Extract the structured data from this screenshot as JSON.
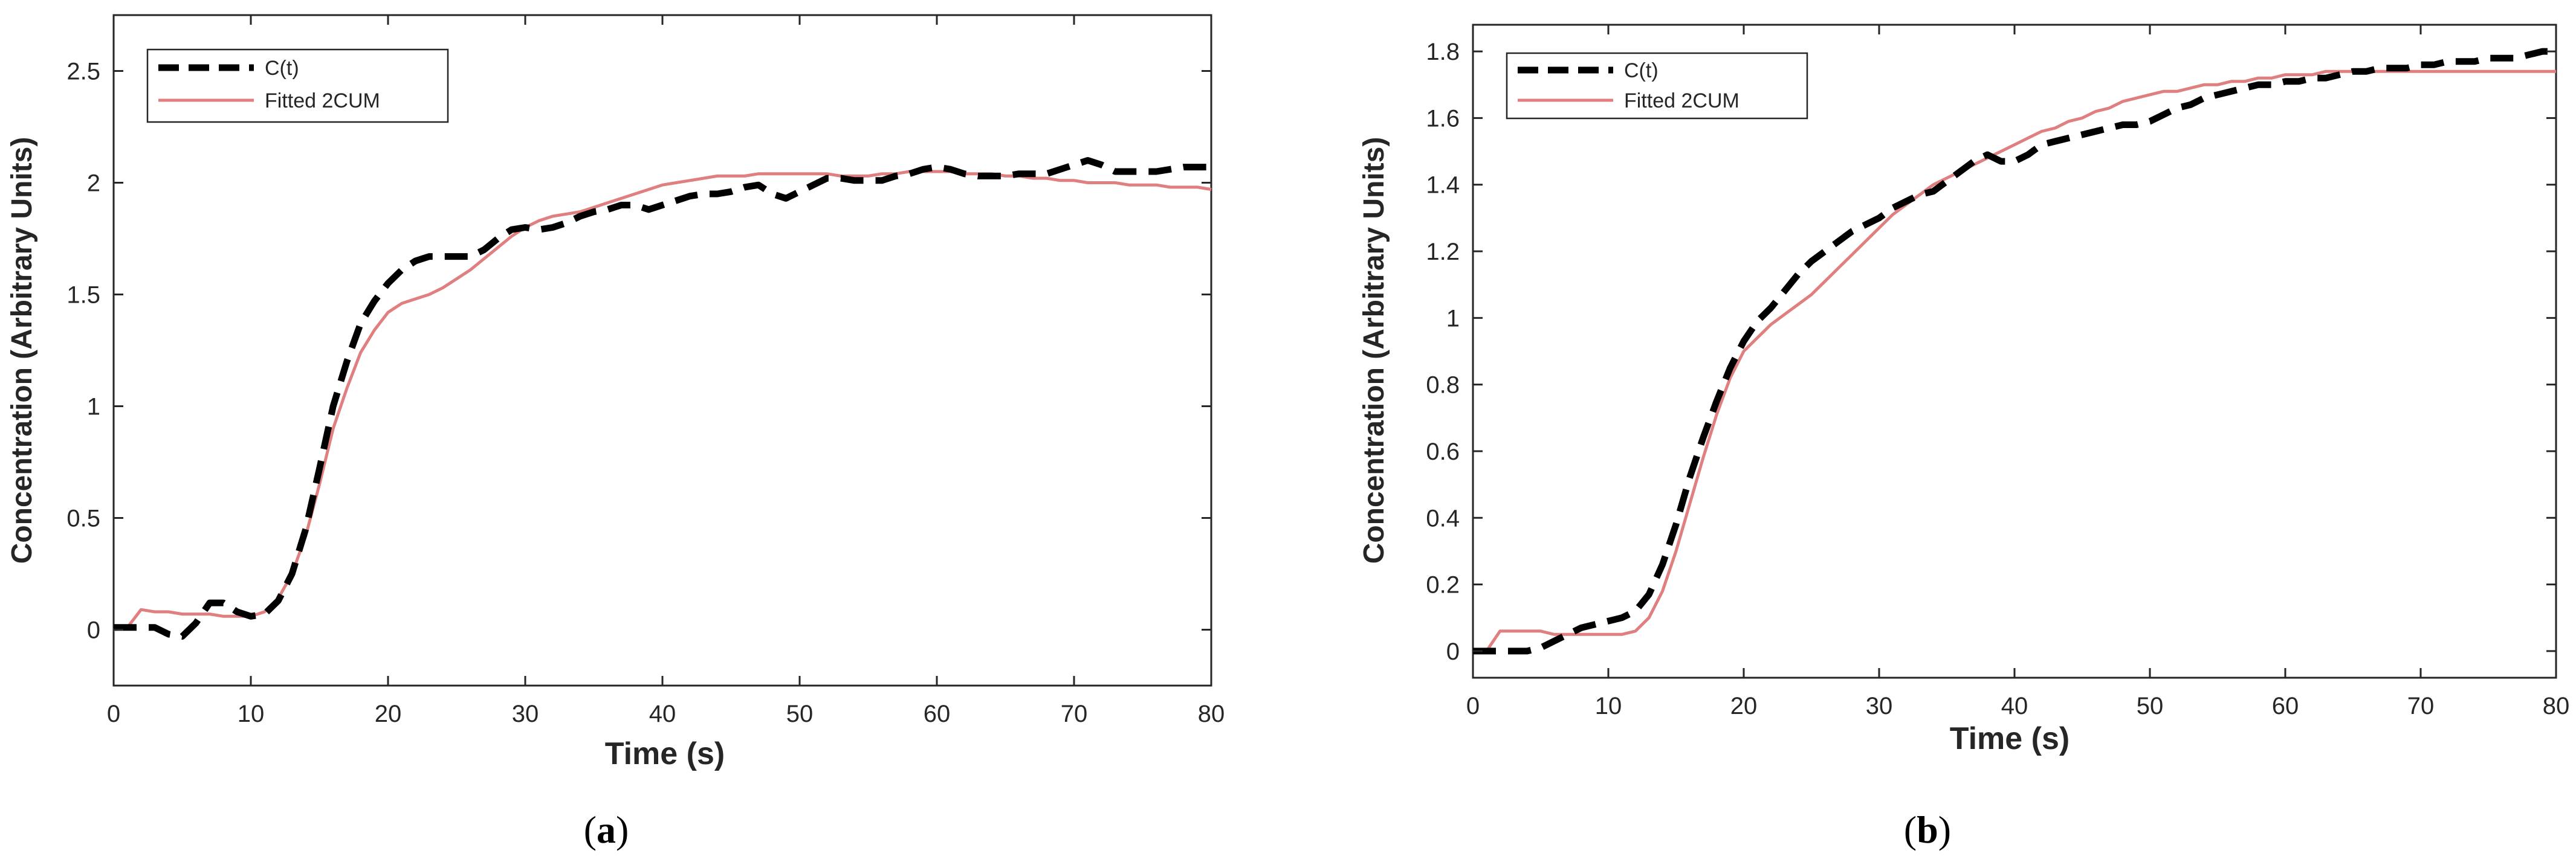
{
  "chart_data": [
    {
      "type": "line",
      "panel_label": "a",
      "xlabel": "Time (s)",
      "ylabel": "Concentration (Arbitrary Units)",
      "xlim": [
        0,
        80
      ],
      "ylim": [
        -0.25,
        2.75
      ],
      "xticks": [
        0,
        10,
        20,
        30,
        40,
        50,
        60,
        70,
        80
      ],
      "yticks": [
        0,
        0.5,
        1,
        1.5,
        2,
        2.5
      ],
      "ytick_labels": [
        "0",
        "0.5",
        "1",
        "1.5",
        "2",
        "2.5"
      ],
      "legend": {
        "position": "top-left",
        "entries": [
          "C(t)",
          "Fitted 2CUM"
        ]
      },
      "colors": {
        "ct": "#000000",
        "fit": "#e07f7f"
      },
      "series": [
        {
          "name": "C(t)",
          "style": "dashed",
          "x": [
            0,
            1,
            2,
            3,
            4,
            5,
            6,
            7,
            8,
            9,
            10,
            11,
            12,
            13,
            14,
            15,
            16,
            17,
            18,
            19,
            20,
            21,
            22,
            23,
            24,
            25,
            26,
            27,
            28,
            29,
            30,
            31,
            32,
            33,
            34,
            35,
            36,
            37,
            38,
            39,
            40,
            41,
            42,
            43,
            44,
            45,
            46,
            47,
            48,
            49,
            50,
            51,
            52,
            53,
            54,
            55,
            56,
            57,
            58,
            59,
            60,
            61,
            62,
            63,
            64,
            65,
            66,
            67,
            68,
            69,
            70,
            71,
            72,
            73,
            74,
            75,
            76,
            77,
            78,
            79,
            80
          ],
          "values": [
            0.01,
            0.01,
            0.01,
            0.01,
            -0.02,
            -0.03,
            0.03,
            0.12,
            0.12,
            0.08,
            0.06,
            0.07,
            0.13,
            0.25,
            0.45,
            0.72,
            1.0,
            1.2,
            1.37,
            1.47,
            1.55,
            1.61,
            1.65,
            1.67,
            1.67,
            1.67,
            1.67,
            1.7,
            1.75,
            1.79,
            1.8,
            1.79,
            1.8,
            1.82,
            1.85,
            1.87,
            1.88,
            1.9,
            1.9,
            1.88,
            1.9,
            1.92,
            1.94,
            1.95,
            1.95,
            1.96,
            1.98,
            1.99,
            1.95,
            1.93,
            1.96,
            1.99,
            2.02,
            2.02,
            2.01,
            2.01,
            2.01,
            2.03,
            2.04,
            2.06,
            2.07,
            2.06,
            2.04,
            2.03,
            2.03,
            2.03,
            2.04,
            2.04,
            2.04,
            2.06,
            2.08,
            2.1,
            2.08,
            2.05,
            2.05,
            2.05,
            2.05,
            2.06,
            2.07,
            2.07,
            2.07
          ]
        },
        {
          "name": "Fitted 2CUM",
          "style": "solid",
          "x": [
            0,
            1,
            2,
            3,
            4,
            5,
            6,
            7,
            8,
            9,
            10,
            11,
            12,
            13,
            14,
            15,
            16,
            17,
            18,
            19,
            20,
            21,
            22,
            23,
            24,
            25,
            26,
            27,
            28,
            29,
            30,
            31,
            32,
            33,
            34,
            35,
            36,
            37,
            38,
            39,
            40,
            41,
            42,
            43,
            44,
            45,
            46,
            47,
            48,
            49,
            50,
            51,
            52,
            53,
            54,
            55,
            56,
            57,
            58,
            59,
            60,
            61,
            62,
            63,
            64,
            65,
            66,
            67,
            68,
            69,
            70,
            71,
            72,
            73,
            74,
            75,
            76,
            77,
            78,
            79,
            80
          ],
          "values": [
            0.0,
            0.01,
            0.09,
            0.08,
            0.08,
            0.07,
            0.07,
            0.07,
            0.06,
            0.06,
            0.06,
            0.08,
            0.14,
            0.25,
            0.42,
            0.65,
            0.9,
            1.08,
            1.24,
            1.34,
            1.42,
            1.46,
            1.48,
            1.5,
            1.53,
            1.57,
            1.61,
            1.66,
            1.71,
            1.76,
            1.8,
            1.83,
            1.85,
            1.86,
            1.87,
            1.89,
            1.91,
            1.93,
            1.95,
            1.97,
            1.99,
            2.0,
            2.01,
            2.02,
            2.03,
            2.03,
            2.03,
            2.04,
            2.04,
            2.04,
            2.04,
            2.04,
            2.04,
            2.03,
            2.03,
            2.03,
            2.04,
            2.04,
            2.05,
            2.05,
            2.05,
            2.05,
            2.04,
            2.04,
            2.04,
            2.03,
            2.03,
            2.02,
            2.02,
            2.01,
            2.01,
            2.0,
            2.0,
            2.0,
            1.99,
            1.99,
            1.99,
            1.98,
            1.98,
            1.98,
            1.97
          ]
        }
      ]
    },
    {
      "type": "line",
      "panel_label": "b",
      "xlabel": "Time (s)",
      "ylabel": "Concentration (Arbitrary Units)",
      "xlim": [
        0,
        80
      ],
      "ylim": [
        -0.08,
        1.88
      ],
      "xticks": [
        0,
        10,
        20,
        30,
        40,
        50,
        60,
        70,
        80
      ],
      "yticks": [
        0,
        0.2,
        0.4,
        0.6,
        0.8,
        1,
        1.2,
        1.4,
        1.6,
        1.8
      ],
      "ytick_labels": [
        "0",
        "0.2",
        "0.4",
        "0.6",
        "0.8",
        "1",
        "1.2",
        "1.4",
        "1.6",
        "1.8"
      ],
      "legend": {
        "position": "top-left",
        "entries": [
          "C(t)",
          "Fitted 2CUM"
        ]
      },
      "colors": {
        "ct": "#000000",
        "fit": "#e07f7f"
      },
      "series": [
        {
          "name": "C(t)",
          "style": "dashed",
          "x": [
            0,
            1,
            2,
            3,
            4,
            5,
            6,
            7,
            8,
            9,
            10,
            11,
            12,
            13,
            14,
            15,
            16,
            17,
            18,
            19,
            20,
            21,
            22,
            23,
            24,
            25,
            26,
            27,
            28,
            29,
            30,
            31,
            32,
            33,
            34,
            35,
            36,
            37,
            38,
            39,
            40,
            41,
            42,
            43,
            44,
            45,
            46,
            47,
            48,
            49,
            50,
            51,
            52,
            53,
            54,
            55,
            56,
            57,
            58,
            59,
            60,
            61,
            62,
            63,
            64,
            65,
            66,
            67,
            68,
            69,
            70,
            71,
            72,
            73,
            74,
            75,
            76,
            77,
            78,
            79,
            80
          ],
          "values": [
            0.0,
            0.0,
            0.0,
            0.0,
            0.0,
            0.01,
            0.03,
            0.05,
            0.07,
            0.08,
            0.09,
            0.1,
            0.12,
            0.17,
            0.26,
            0.38,
            0.52,
            0.64,
            0.75,
            0.85,
            0.93,
            0.99,
            1.03,
            1.08,
            1.13,
            1.17,
            1.2,
            1.23,
            1.26,
            1.28,
            1.3,
            1.33,
            1.35,
            1.37,
            1.38,
            1.41,
            1.44,
            1.47,
            1.49,
            1.47,
            1.47,
            1.49,
            1.52,
            1.53,
            1.54,
            1.55,
            1.56,
            1.57,
            1.58,
            1.58,
            1.59,
            1.61,
            1.63,
            1.64,
            1.66,
            1.67,
            1.68,
            1.69,
            1.7,
            1.7,
            1.71,
            1.71,
            1.72,
            1.72,
            1.73,
            1.74,
            1.74,
            1.75,
            1.75,
            1.75,
            1.76,
            1.76,
            1.77,
            1.77,
            1.77,
            1.78,
            1.78,
            1.78,
            1.79,
            1.8,
            1.8
          ]
        },
        {
          "name": "Fitted 2CUM",
          "style": "solid",
          "x": [
            0,
            1,
            2,
            3,
            4,
            5,
            6,
            7,
            8,
            9,
            10,
            11,
            12,
            13,
            14,
            15,
            16,
            17,
            18,
            19,
            20,
            21,
            22,
            23,
            24,
            25,
            26,
            27,
            28,
            29,
            30,
            31,
            32,
            33,
            34,
            35,
            36,
            37,
            38,
            39,
            40,
            41,
            42,
            43,
            44,
            45,
            46,
            47,
            48,
            49,
            50,
            51,
            52,
            53,
            54,
            55,
            56,
            57,
            58,
            59,
            60,
            61,
            62,
            63,
            64,
            65,
            66,
            67,
            68,
            69,
            70,
            71,
            72,
            73,
            74,
            75,
            76,
            77,
            78,
            79,
            80
          ],
          "values": [
            0.0,
            0.0,
            0.06,
            0.06,
            0.06,
            0.06,
            0.05,
            0.05,
            0.05,
            0.05,
            0.05,
            0.05,
            0.06,
            0.1,
            0.18,
            0.3,
            0.44,
            0.58,
            0.71,
            0.82,
            0.9,
            0.94,
            0.98,
            1.01,
            1.04,
            1.07,
            1.11,
            1.15,
            1.19,
            1.23,
            1.27,
            1.31,
            1.34,
            1.37,
            1.4,
            1.42,
            1.44,
            1.46,
            1.48,
            1.5,
            1.52,
            1.54,
            1.56,
            1.57,
            1.59,
            1.6,
            1.62,
            1.63,
            1.65,
            1.66,
            1.67,
            1.68,
            1.68,
            1.69,
            1.7,
            1.7,
            1.71,
            1.71,
            1.72,
            1.72,
            1.73,
            1.73,
            1.73,
            1.74,
            1.74,
            1.74,
            1.74,
            1.74,
            1.74,
            1.74,
            1.74,
            1.74,
            1.74,
            1.74,
            1.74,
            1.74,
            1.74,
            1.74,
            1.74,
            1.74,
            1.74
          ]
        }
      ]
    }
  ]
}
